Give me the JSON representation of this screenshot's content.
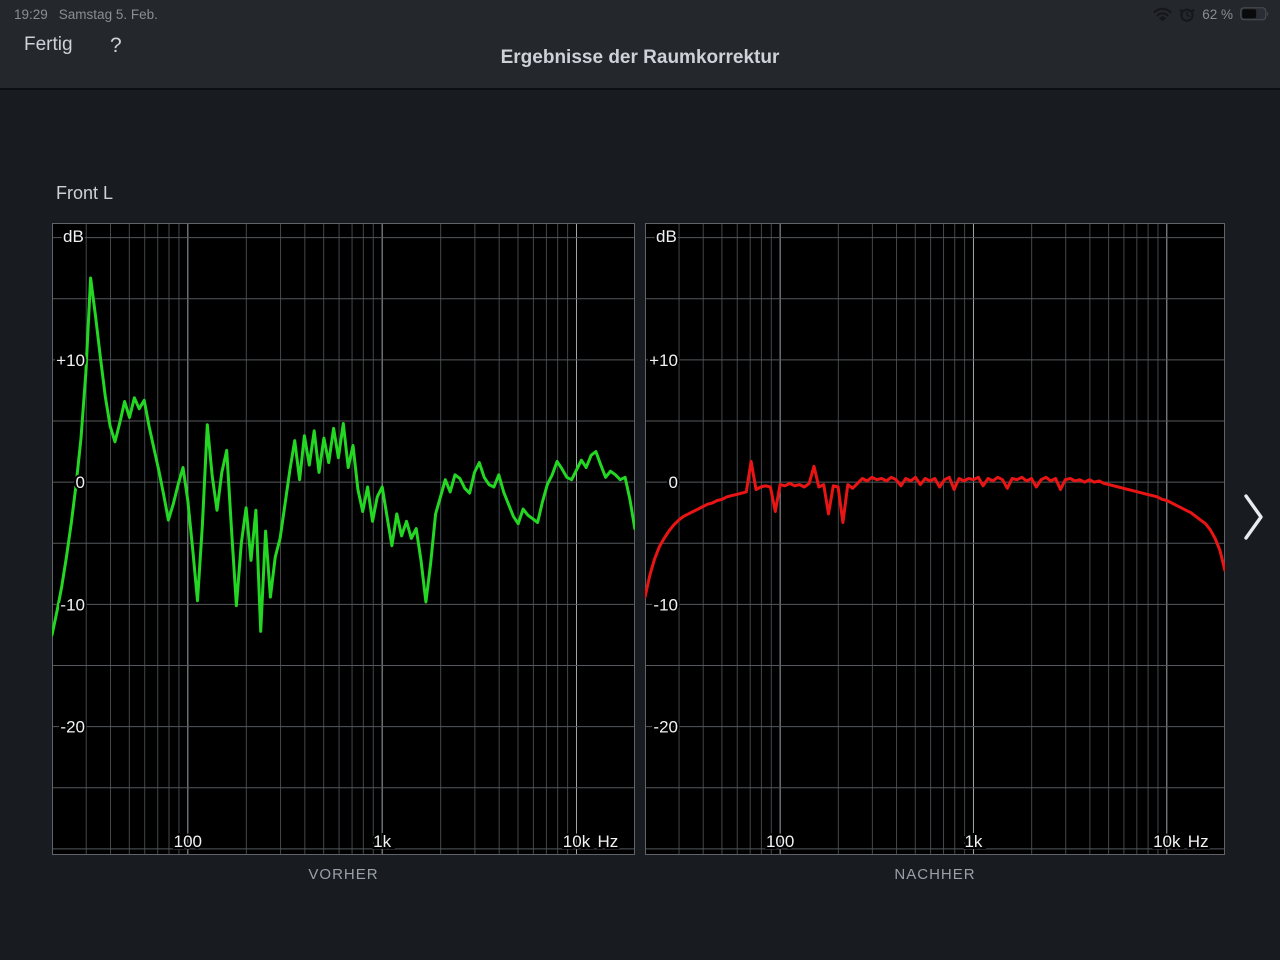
{
  "status_bar": {
    "time": "19:29",
    "date": "Samstag 5. Feb.",
    "battery_percent": "62 %",
    "icons": [
      "wifi-icon",
      "alarm-clock-icon",
      "battery-icon"
    ],
    "icon_color": "#15171b",
    "text_color": "#898e94"
  },
  "nav": {
    "done_label": "Fertig",
    "help_label": "?",
    "title": "Ergebnisse der Raumkorrektur"
  },
  "channel_label": "Front L",
  "pager": {
    "next_icon": "chevron-right",
    "color": "#e9ebee"
  },
  "chart_data": [
    {
      "type": "line",
      "title": "VORHER",
      "series_name": "frequency-response-before-correction",
      "color": "#23d723",
      "label_color": "#f1f2f3",
      "x_scale": "log",
      "x_range": [
        20,
        20000
      ],
      "y_range": [
        -30.5,
        21.2
      ],
      "ylabel": "dB",
      "x_unit": "Hz",
      "grid_step_db": 5,
      "grid_colors": {
        "h_line": "#54585c",
        "v_minor": "#43474b",
        "v_major": "#9fa5aa",
        "border": "#60646a"
      },
      "y_ticks": [
        {
          "db": 10,
          "label": "+10"
        },
        {
          "db": 0,
          "label": "0"
        },
        {
          "db": -10,
          "label": "-10"
        },
        {
          "db": -20,
          "label": "-20"
        }
      ],
      "x_ticks": [
        {
          "hz": 100,
          "label": "100"
        },
        {
          "hz": 1000,
          "label": "1k"
        },
        {
          "hz": 10000,
          "label": "10k"
        }
      ],
      "points": [
        [
          20,
          -12.5
        ],
        [
          21.2,
          -10.6
        ],
        [
          22.4,
          -8.6
        ],
        [
          23.7,
          -6.2
        ],
        [
          25.1,
          -3.4
        ],
        [
          26.6,
          -0.2
        ],
        [
          28.2,
          3.6
        ],
        [
          29.9,
          9.0
        ],
        [
          31.6,
          16.7
        ],
        [
          33.5,
          13.6
        ],
        [
          35.5,
          10.2
        ],
        [
          37.6,
          7.0
        ],
        [
          39.8,
          4.6
        ],
        [
          42.2,
          3.3
        ],
        [
          44.7,
          4.9
        ],
        [
          47.3,
          6.6
        ],
        [
          50.1,
          5.3
        ],
        [
          53.1,
          6.9
        ],
        [
          56.2,
          6.0
        ],
        [
          59.6,
          6.7
        ],
        [
          63.1,
          4.6
        ],
        [
          66.8,
          2.8
        ],
        [
          70.8,
          1.0
        ],
        [
          75,
          -1.0
        ],
        [
          79.4,
          -3.1
        ],
        [
          84.1,
          -1.8
        ],
        [
          89.1,
          -0.2
        ],
        [
          94.4,
          1.2
        ],
        [
          100,
          -1.5
        ],
        [
          105.9,
          -5.5
        ],
        [
          112.2,
          -9.7
        ],
        [
          118.9,
          -3.5
        ],
        [
          125.9,
          4.7
        ],
        [
          133.4,
          0.5
        ],
        [
          141.3,
          -2.3
        ],
        [
          149.6,
          0.8
        ],
        [
          158.5,
          2.6
        ],
        [
          168,
          -4.0
        ],
        [
          177.8,
          -10.1
        ],
        [
          188.4,
          -5.0
        ],
        [
          199.5,
          -2.1
        ],
        [
          211.3,
          -6.4
        ],
        [
          223.9,
          -2.3
        ],
        [
          237.1,
          -12.2
        ],
        [
          251.2,
          -4.0
        ],
        [
          266.1,
          -9.4
        ],
        [
          281.8,
          -6.1
        ],
        [
          298.5,
          -4.6
        ],
        [
          316.2,
          -1.8
        ],
        [
          335,
          1.0
        ],
        [
          354.8,
          3.4
        ],
        [
          375.8,
          0.2
        ],
        [
          398.1,
          3.8
        ],
        [
          421.7,
          1.4
        ],
        [
          446.7,
          4.2
        ],
        [
          473.2,
          0.8
        ],
        [
          501.2,
          3.6
        ],
        [
          530.9,
          1.6
        ],
        [
          562.3,
          4.4
        ],
        [
          595.7,
          2.0
        ],
        [
          631,
          4.8
        ],
        [
          668.3,
          1.2
        ],
        [
          707.9,
          3.0
        ],
        [
          749.9,
          -0.6
        ],
        [
          794.3,
          -2.4
        ],
        [
          841.4,
          -0.4
        ],
        [
          891.3,
          -3.2
        ],
        [
          944.1,
          -1.2
        ],
        [
          1000,
          -0.4
        ],
        [
          1059,
          -2.8
        ],
        [
          1122,
          -5.2
        ],
        [
          1189,
          -2.6
        ],
        [
          1259,
          -4.4
        ],
        [
          1334,
          -3.2
        ],
        [
          1413,
          -4.6
        ],
        [
          1496,
          -3.8
        ],
        [
          1585,
          -6.4
        ],
        [
          1679,
          -9.8
        ],
        [
          1778,
          -6.6
        ],
        [
          1884,
          -2.6
        ],
        [
          1995,
          -1.2
        ],
        [
          2113,
          0.2
        ],
        [
          2239,
          -0.8
        ],
        [
          2371,
          0.6
        ],
        [
          2512,
          0.3
        ],
        [
          2661,
          -0.5
        ],
        [
          2818,
          -0.9
        ],
        [
          2985,
          0.8
        ],
        [
          3162,
          1.6
        ],
        [
          3350,
          0.4
        ],
        [
          3548,
          -0.2
        ],
        [
          3758,
          -0.4
        ],
        [
          3981,
          0.6
        ],
        [
          4217,
          -0.8
        ],
        [
          4467,
          -1.8
        ],
        [
          4732,
          -2.8
        ],
        [
          5012,
          -3.4
        ],
        [
          5309,
          -2.2
        ],
        [
          5623,
          -2.7
        ],
        [
          5957,
          -3.0
        ],
        [
          6310,
          -3.3
        ],
        [
          6683,
          -1.6
        ],
        [
          7079,
          -0.2
        ],
        [
          7499,
          0.6
        ],
        [
          7943,
          1.7
        ],
        [
          8414,
          1.1
        ],
        [
          8913,
          0.4
        ],
        [
          9441,
          0.2
        ],
        [
          10000,
          1.0
        ],
        [
          10593,
          1.8
        ],
        [
          11220,
          1.2
        ],
        [
          11885,
          2.2
        ],
        [
          12589,
          2.5
        ],
        [
          13335,
          1.4
        ],
        [
          14125,
          0.4
        ],
        [
          14962,
          0.9
        ],
        [
          15849,
          0.6
        ],
        [
          16788,
          0.2
        ],
        [
          17783,
          0.4
        ],
        [
          18836,
          -1.4
        ],
        [
          19953,
          -3.8
        ]
      ]
    },
    {
      "type": "line",
      "title": "NACHHER",
      "series_name": "frequency-response-after-correction",
      "color": "#e91515",
      "label_color": "#f1f2f3",
      "x_scale": "log",
      "x_range": [
        20,
        20000
      ],
      "y_range": [
        -30.5,
        21.2
      ],
      "ylabel": "dB",
      "x_unit": "Hz",
      "grid_step_db": 5,
      "grid_colors": {
        "h_line": "#54585c",
        "v_minor": "#43474b",
        "v_major": "#9fa5aa",
        "border": "#60646a"
      },
      "y_ticks": [
        {
          "db": 10,
          "label": "+10"
        },
        {
          "db": 0,
          "label": "0"
        },
        {
          "db": -10,
          "label": "-10"
        },
        {
          "db": -20,
          "label": "-20"
        }
      ],
      "x_ticks": [
        {
          "hz": 100,
          "label": "100"
        },
        {
          "hz": 1000,
          "label": "1k"
        },
        {
          "hz": 10000,
          "label": "10k"
        }
      ],
      "points": [
        [
          20,
          -9.4
        ],
        [
          21.2,
          -7.6
        ],
        [
          22.4,
          -6.3
        ],
        [
          23.7,
          -5.3
        ],
        [
          25.1,
          -4.6
        ],
        [
          26.6,
          -4.0
        ],
        [
          28.2,
          -3.5
        ],
        [
          29.9,
          -3.1
        ],
        [
          31.6,
          -2.8
        ],
        [
          33.5,
          -2.6
        ],
        [
          35.5,
          -2.4
        ],
        [
          37.6,
          -2.2
        ],
        [
          39.8,
          -2.0
        ],
        [
          42.2,
          -1.8
        ],
        [
          44.7,
          -1.7
        ],
        [
          47.3,
          -1.5
        ],
        [
          50.1,
          -1.4
        ],
        [
          53.1,
          -1.2
        ],
        [
          56.2,
          -1.1
        ],
        [
          59.6,
          -1.0
        ],
        [
          63.1,
          -0.9
        ],
        [
          66.8,
          -0.8
        ],
        [
          70.8,
          1.7
        ],
        [
          75,
          -0.6
        ],
        [
          79.4,
          -0.4
        ],
        [
          84.1,
          -0.3
        ],
        [
          89.1,
          -0.4
        ],
        [
          94.4,
          -2.4
        ],
        [
          100,
          -0.2
        ],
        [
          105.9,
          -0.3
        ],
        [
          112.2,
          -0.1
        ],
        [
          118.9,
          -0.3
        ],
        [
          125.9,
          -0.2
        ],
        [
          133.4,
          -0.4
        ],
        [
          141.3,
          -0.1
        ],
        [
          149.6,
          1.3
        ],
        [
          158.5,
          -0.4
        ],
        [
          168,
          -0.2
        ],
        [
          177.8,
          -2.6
        ],
        [
          188.4,
          -0.3
        ],
        [
          199.5,
          -0.4
        ],
        [
          211.3,
          -3.3
        ],
        [
          223.9,
          -0.2
        ],
        [
          237.1,
          -0.5
        ],
        [
          251.2,
          -0.1
        ],
        [
          266.1,
          0.3
        ],
        [
          281.8,
          0.1
        ],
        [
          298.5,
          0.4
        ],
        [
          316.2,
          0.2
        ],
        [
          335,
          0.3
        ],
        [
          354.8,
          0.1
        ],
        [
          375.8,
          0.4
        ],
        [
          398.1,
          0.2
        ],
        [
          421.7,
          -0.3
        ],
        [
          446.7,
          0.3
        ],
        [
          473.2,
          0.1
        ],
        [
          501.2,
          0.4
        ],
        [
          530.9,
          -0.2
        ],
        [
          562.3,
          0.3
        ],
        [
          595.7,
          0.1
        ],
        [
          631,
          0.3
        ],
        [
          668.3,
          -0.4
        ],
        [
          707.9,
          0.2
        ],
        [
          749.9,
          0.4
        ],
        [
          794.3,
          -0.6
        ],
        [
          841.4,
          0.3
        ],
        [
          891.3,
          0.1
        ],
        [
          944.1,
          0.3
        ],
        [
          1000,
          0.2
        ],
        [
          1059,
          0.4
        ],
        [
          1122,
          -0.3
        ],
        [
          1189,
          0.3
        ],
        [
          1259,
          0.1
        ],
        [
          1334,
          0.4
        ],
        [
          1413,
          0.2
        ],
        [
          1496,
          -0.5
        ],
        [
          1585,
          0.3
        ],
        [
          1679,
          0.2
        ],
        [
          1778,
          0.4
        ],
        [
          1884,
          0.1
        ],
        [
          1995,
          0.3
        ],
        [
          2113,
          -0.4
        ],
        [
          2239,
          0.2
        ],
        [
          2371,
          0.4
        ],
        [
          2512,
          0.1
        ],
        [
          2661,
          0.3
        ],
        [
          2818,
          -0.6
        ],
        [
          2985,
          0.2
        ],
        [
          3162,
          0.3
        ],
        [
          3350,
          0.1
        ],
        [
          3548,
          0.2
        ],
        [
          3758,
          0.0
        ],
        [
          3981,
          0.2
        ],
        [
          4217,
          0.0
        ],
        [
          4467,
          0.1
        ],
        [
          4732,
          -0.1
        ],
        [
          5012,
          -0.2
        ],
        [
          5309,
          -0.3
        ],
        [
          5623,
          -0.4
        ],
        [
          5957,
          -0.5
        ],
        [
          6310,
          -0.6
        ],
        [
          6683,
          -0.7
        ],
        [
          7079,
          -0.8
        ],
        [
          7499,
          -0.9
        ],
        [
          7943,
          -1.0
        ],
        [
          8414,
          -1.1
        ],
        [
          8913,
          -1.2
        ],
        [
          9441,
          -1.4
        ],
        [
          10000,
          -1.5
        ],
        [
          10593,
          -1.7
        ],
        [
          11220,
          -1.9
        ],
        [
          11885,
          -2.1
        ],
        [
          12589,
          -2.3
        ],
        [
          13335,
          -2.5
        ],
        [
          14125,
          -2.8
        ],
        [
          14962,
          -3.1
        ],
        [
          15849,
          -3.4
        ],
        [
          16788,
          -3.9
        ],
        [
          17783,
          -4.6
        ],
        [
          18836,
          -5.6
        ],
        [
          19953,
          -7.2
        ]
      ]
    }
  ]
}
